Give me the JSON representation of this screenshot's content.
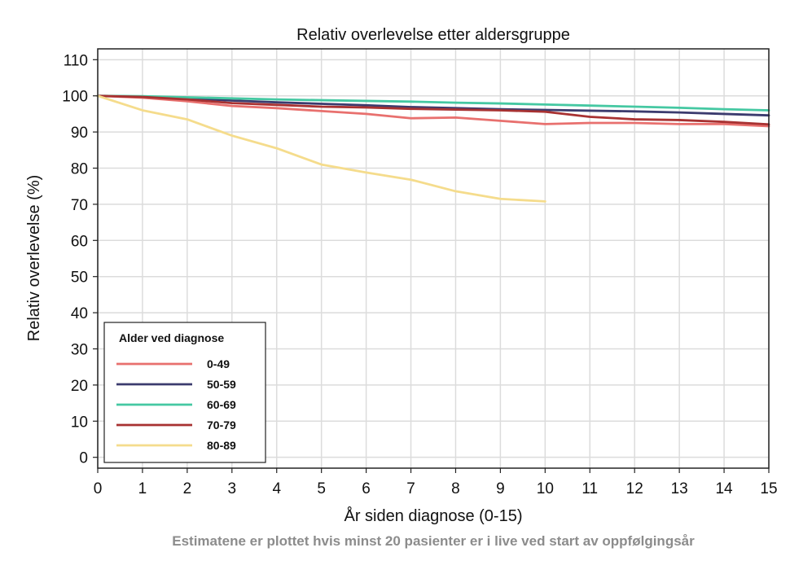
{
  "chart_data": {
    "type": "line",
    "title": "Relativ overlevelse etter aldersgruppe",
    "xlabel": "År siden diagnose (0-15)",
    "ylabel": "Relativ overlevelse (%)",
    "note": "Estimatene er plottet hvis minst 20 pasienter er i live ved start av oppfølgingsår",
    "xlim": [
      0,
      15
    ],
    "ylim": [
      -3,
      113
    ],
    "xticks": [
      0,
      1,
      2,
      3,
      4,
      5,
      6,
      7,
      8,
      9,
      10,
      11,
      12,
      13,
      14,
      15
    ],
    "yticks": [
      0,
      10,
      20,
      30,
      40,
      50,
      60,
      70,
      80,
      90,
      100,
      110
    ],
    "grid": true,
    "legend": {
      "title": "Alder ved diagnose",
      "position": "bottom-left"
    },
    "series": [
      {
        "name": "0-49",
        "color": "#e8706e",
        "x": [
          0,
          1,
          2,
          3,
          4,
          5,
          6,
          7,
          8,
          9,
          10,
          11,
          12,
          13,
          14,
          15
        ],
        "y": [
          100,
          99.5,
          98.5,
          97.2,
          96.6,
          95.8,
          95.0,
          93.8,
          94.0,
          93.1,
          92.2,
          92.5,
          92.5,
          92.2,
          92.2,
          91.6
        ]
      },
      {
        "name": "50-59",
        "color": "#3b3b6e",
        "x": [
          0,
          1,
          2,
          3,
          4,
          5,
          6,
          7,
          8,
          9,
          10,
          11,
          12,
          13,
          14,
          15
        ],
        "y": [
          100,
          99.8,
          99.3,
          98.7,
          98.2,
          97.8,
          97.4,
          96.9,
          96.6,
          96.3,
          96.1,
          95.9,
          95.7,
          95.4,
          95.0,
          94.6
        ]
      },
      {
        "name": "60-69",
        "color": "#45c8a2",
        "x": [
          0,
          1,
          2,
          3,
          4,
          5,
          6,
          7,
          8,
          9,
          10,
          11,
          12,
          13,
          14,
          15
        ],
        "y": [
          100,
          99.9,
          99.6,
          99.3,
          99.0,
          98.8,
          98.6,
          98.4,
          98.1,
          97.9,
          97.6,
          97.3,
          97.0,
          96.7,
          96.3,
          96.0
        ]
      },
      {
        "name": "70-79",
        "color": "#a83232",
        "x": [
          0,
          1,
          2,
          3,
          4,
          5,
          6,
          7,
          8,
          9,
          10,
          11,
          12,
          13,
          14,
          15
        ],
        "y": [
          100,
          99.7,
          99.0,
          98.0,
          97.5,
          97.0,
          96.8,
          96.4,
          96.2,
          96.0,
          95.6,
          94.2,
          93.5,
          93.3,
          92.8,
          92.1
        ]
      },
      {
        "name": "80-89",
        "color": "#f5dc8c",
        "x": [
          0,
          1,
          2,
          3,
          4,
          5,
          6,
          7,
          8,
          9,
          10
        ],
        "y": [
          100,
          96.0,
          93.5,
          89.0,
          85.5,
          81.0,
          78.8,
          76.8,
          73.6,
          71.5,
          70.8
        ]
      }
    ]
  }
}
